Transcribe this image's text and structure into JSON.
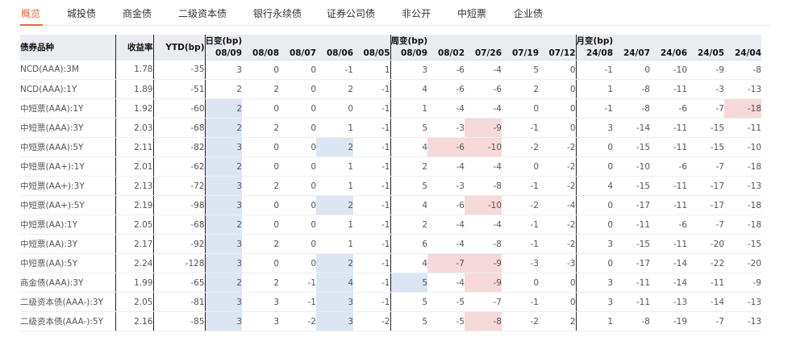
{
  "tabs": [
    {
      "label": "概览",
      "active": true
    },
    {
      "label": "城投债",
      "active": false
    },
    {
      "label": "商金债",
      "active": false
    },
    {
      "label": "二级资本债",
      "active": false
    },
    {
      "label": "银行永续债",
      "active": false
    },
    {
      "label": "证券公司债",
      "active": false
    },
    {
      "label": "非公开",
      "active": false
    },
    {
      "label": "中短票",
      "active": false
    },
    {
      "label": "企业债",
      "active": false
    }
  ],
  "table": {
    "col_name": "债券品种",
    "col_yield": "收益率",
    "col_ytd": "YTD(bp)",
    "daily_group": "日变(bp)",
    "weekly_group": "周变(bp)",
    "monthly_group": "月变(bp)",
    "daily_dates": [
      "08/09",
      "08/08",
      "08/07",
      "08/06",
      "08/05"
    ],
    "weekly_dates": [
      "08/09",
      "08/02",
      "07/26",
      "07/19",
      "07/12"
    ],
    "monthly_dates": [
      "24/08",
      "24/07",
      "24/06",
      "24/05",
      "24/04"
    ],
    "rows": [
      {
        "name": "NCD(AAA):3M",
        "yield": "1.78",
        "ytd": "-35",
        "daily": [
          "3",
          "0",
          "0",
          "-1",
          "1"
        ],
        "weekly": [
          "3",
          "-6",
          "-4",
          "5",
          "0"
        ],
        "monthly": [
          "-1",
          "0",
          "-10",
          "-9",
          "-8"
        ],
        "group_start": false
      },
      {
        "name": "NCD(AAA):1Y",
        "yield": "1.89",
        "ytd": "-51",
        "daily": [
          "2",
          "2",
          "0",
          "2",
          "-1"
        ],
        "weekly": [
          "4",
          "-6",
          "-6",
          "2",
          "0"
        ],
        "monthly": [
          "1",
          "-8",
          "-11",
          "-3",
          "-13"
        ],
        "group_start": false
      },
      {
        "name": "中短票(AAA):1Y",
        "yield": "1.92",
        "ytd": "-60",
        "daily": [
          "2",
          "0",
          "0",
          "0",
          "-1"
        ],
        "weekly": [
          "1",
          "-4",
          "-4",
          "0",
          "0"
        ],
        "monthly": [
          "-1",
          "-8",
          "-6",
          "-7",
          "-18"
        ],
        "group_start": true
      },
      {
        "name": "中短票(AAA):3Y",
        "yield": "2.03",
        "ytd": "-68",
        "daily": [
          "2",
          "2",
          "0",
          "1",
          "-1"
        ],
        "weekly": [
          "5",
          "-3",
          "-9",
          "-1",
          "0"
        ],
        "monthly": [
          "3",
          "-14",
          "-11",
          "-15",
          "-11"
        ],
        "group_start": false
      },
      {
        "name": "中短票(AAA):5Y",
        "yield": "2.11",
        "ytd": "-82",
        "daily": [
          "3",
          "0",
          "0",
          "2",
          "-1"
        ],
        "weekly": [
          "4",
          "-6",
          "-10",
          "-2",
          "-2"
        ],
        "monthly": [
          "0",
          "-15",
          "-11",
          "-15",
          "-10"
        ],
        "group_start": false
      },
      {
        "name": "中短票(AA+):1Y",
        "yield": "2.01",
        "ytd": "-62",
        "daily": [
          "2",
          "0",
          "0",
          "1",
          "-1"
        ],
        "weekly": [
          "2",
          "-4",
          "-4",
          "0",
          "-2"
        ],
        "monthly": [
          "0",
          "-10",
          "-6",
          "-7",
          "-18"
        ],
        "group_start": true
      },
      {
        "name": "中短票(AA+):3Y",
        "yield": "2.13",
        "ytd": "-72",
        "daily": [
          "3",
          "2",
          "0",
          "1",
          "-1"
        ],
        "weekly": [
          "5",
          "-3",
          "-8",
          "-1",
          "-2"
        ],
        "monthly": [
          "4",
          "-15",
          "-11",
          "-17",
          "-13"
        ],
        "group_start": false
      },
      {
        "name": "中短票(AA+):5Y",
        "yield": "2.19",
        "ytd": "-98",
        "daily": [
          "3",
          "0",
          "0",
          "2",
          "-1"
        ],
        "weekly": [
          "4",
          "-6",
          "-10",
          "-2",
          "-4"
        ],
        "monthly": [
          "0",
          "-17",
          "-11",
          "-17",
          "-18"
        ],
        "group_start": false
      },
      {
        "name": "中短票(AA):1Y",
        "yield": "2.05",
        "ytd": "-68",
        "daily": [
          "2",
          "0",
          "0",
          "1",
          "-1"
        ],
        "weekly": [
          "2",
          "-4",
          "-4",
          "-1",
          "-2"
        ],
        "monthly": [
          "0",
          "-11",
          "-6",
          "-7",
          "-18"
        ],
        "group_start": true
      },
      {
        "name": "中短票(AA):3Y",
        "yield": "2.17",
        "ytd": "-92",
        "daily": [
          "3",
          "2",
          "0",
          "1",
          "-1"
        ],
        "weekly": [
          "6",
          "-4",
          "-8",
          "-1",
          "-2"
        ],
        "monthly": [
          "3",
          "-15",
          "-11",
          "-20",
          "-15"
        ],
        "group_start": false
      },
      {
        "name": "中短票(AA):5Y",
        "yield": "2.24",
        "ytd": "-128",
        "daily": [
          "3",
          "0",
          "0",
          "2",
          "-1"
        ],
        "weekly": [
          "4",
          "-7",
          "-9",
          "-3",
          "-3"
        ],
        "monthly": [
          "0",
          "-17",
          "-14",
          "-22",
          "-20"
        ],
        "group_start": false
      },
      {
        "name": "商金债(AAA):3Y",
        "yield": "1.99",
        "ytd": "-65",
        "daily": [
          "2",
          "2",
          "-1",
          "4",
          "-1"
        ],
        "weekly": [
          "5",
          "-4",
          "-9",
          "0",
          "0"
        ],
        "monthly": [
          "3",
          "-11",
          "-14",
          "-11",
          "-9"
        ],
        "group_start": true
      },
      {
        "name": "二级资本债(AAA-):3Y",
        "yield": "2.05",
        "ytd": "-81",
        "daily": [
          "3",
          "3",
          "-1",
          "3",
          "-1"
        ],
        "weekly": [
          "5",
          "-5",
          "-7",
          "-1",
          "0"
        ],
        "monthly": [
          "3",
          "-11",
          "-13",
          "-14",
          "-13"
        ],
        "group_start": false
      },
      {
        "name": "二级资本债(AAA-):5Y",
        "yield": "2.16",
        "ytd": "-85",
        "daily": [
          "3",
          "3",
          "-2",
          "3",
          "-2"
        ],
        "weekly": [
          "5",
          "-5",
          "-8",
          "-2",
          "2"
        ],
        "monthly": [
          "1",
          "-8",
          "-19",
          "-7",
          "-13"
        ],
        "group_start": false
      }
    ],
    "highlights": {
      "blue": [
        [
          2,
          "d",
          0
        ],
        [
          3,
          "d",
          0
        ],
        [
          4,
          "d",
          0
        ],
        [
          4,
          "d",
          3
        ],
        [
          5,
          "d",
          0
        ],
        [
          6,
          "d",
          0
        ],
        [
          7,
          "d",
          0
        ],
        [
          7,
          "d",
          3
        ],
        [
          8,
          "d",
          0
        ],
        [
          9,
          "d",
          0
        ],
        [
          10,
          "d",
          0
        ],
        [
          10,
          "d",
          3
        ],
        [
          11,
          "d",
          0
        ],
        [
          11,
          "d",
          3
        ],
        [
          11,
          "w",
          0
        ],
        [
          12,
          "d",
          0
        ],
        [
          12,
          "d",
          3
        ],
        [
          13,
          "d",
          0
        ],
        [
          13,
          "d",
          3
        ]
      ],
      "red": [
        [
          2,
          "m",
          4
        ],
        [
          3,
          "w",
          2
        ],
        [
          4,
          "w",
          1
        ],
        [
          4,
          "w",
          2
        ],
        [
          7,
          "w",
          2
        ],
        [
          10,
          "w",
          1
        ],
        [
          10,
          "w",
          2
        ],
        [
          11,
          "w",
          2
        ],
        [
          13,
          "w",
          2
        ]
      ],
      "blue_color": "#dce6f2",
      "red_color": "#f7d9d9"
    }
  }
}
